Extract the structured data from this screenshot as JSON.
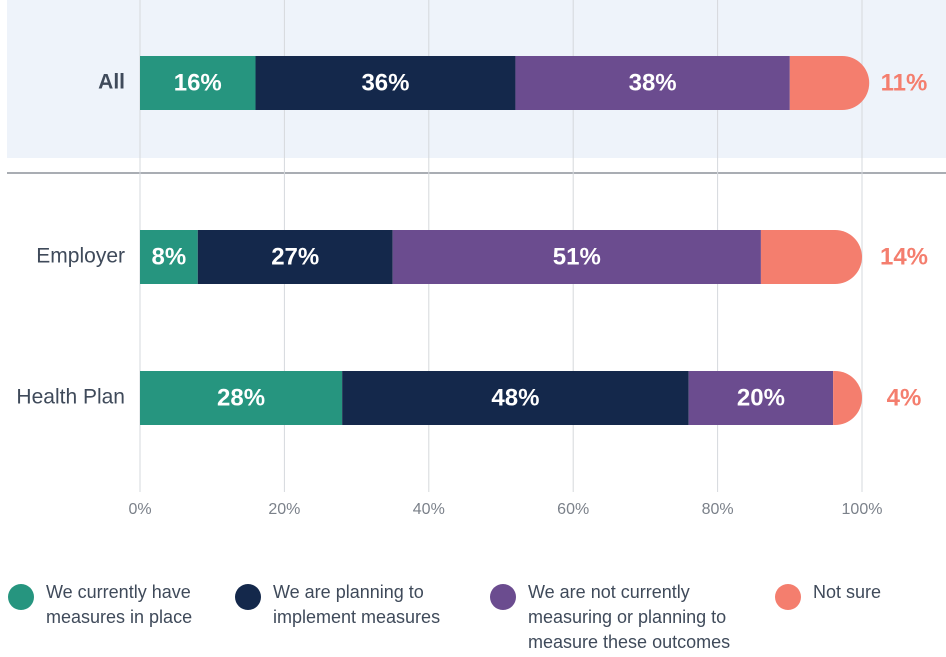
{
  "chart_data": {
    "type": "stacked-bar",
    "categories": [
      "All",
      "Employer",
      "Health Plan"
    ],
    "series": [
      {
        "name": "We currently have measures in place",
        "color": "#26957f",
        "values": [
          16,
          8,
          28
        ],
        "value_labels": [
          "16%",
          "8%",
          "28%"
        ]
      },
      {
        "name": "We are planning to implement measures",
        "color": "#14284b",
        "values": [
          36,
          27,
          48
        ],
        "value_labels": [
          "36%",
          "27%",
          "48%"
        ]
      },
      {
        "name": "We are not currently measuring or planning to measure these outcomes",
        "color": "#6b4c8f",
        "values": [
          38,
          51,
          20
        ],
        "value_labels": [
          "38%",
          "51%",
          "20%"
        ]
      },
      {
        "name": "Not sure",
        "color": "#f47e6e",
        "values": [
          11,
          14,
          4
        ],
        "value_labels": [
          "11%",
          "14%",
          "4%"
        ]
      }
    ],
    "xlim": [
      0,
      100
    ],
    "xticks": [
      {
        "value": 0,
        "label": "0%"
      },
      {
        "value": 20,
        "label": "20%"
      },
      {
        "value": 40,
        "label": "40%"
      },
      {
        "value": 60,
        "label": "60%"
      },
      {
        "value": 80,
        "label": "80%"
      },
      {
        "value": 100,
        "label": "100%"
      }
    ],
    "grid": true,
    "legend": "bottom"
  }
}
